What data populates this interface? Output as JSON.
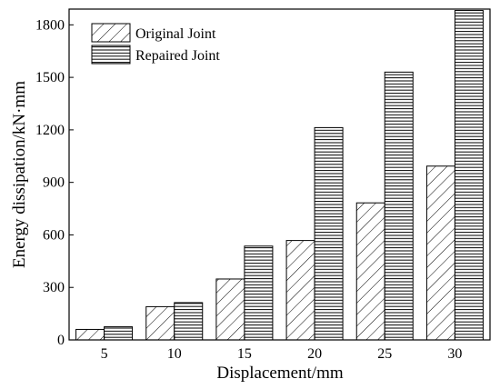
{
  "chart_data": {
    "type": "bar",
    "title": "",
    "xlabel": "Displacement/mm",
    "ylabel": "Energy dissipation/kN·mm",
    "categories": [
      "5",
      "10",
      "15",
      "20",
      "25",
      "30"
    ],
    "ylim": [
      0,
      1890
    ],
    "yticks": [
      0,
      300,
      600,
      900,
      1200,
      1500,
      1800
    ],
    "legend_position": "top-left",
    "grid": false,
    "series": [
      {
        "name": "Original Joint",
        "pattern": "diagonal-hatch",
        "values": [
          60,
          190,
          348,
          568,
          783,
          993
        ]
      },
      {
        "name": "Repaired Joint",
        "pattern": "horizontal-hatch",
        "values": [
          75,
          213,
          536,
          1213,
          1530,
          1882
        ]
      }
    ]
  }
}
